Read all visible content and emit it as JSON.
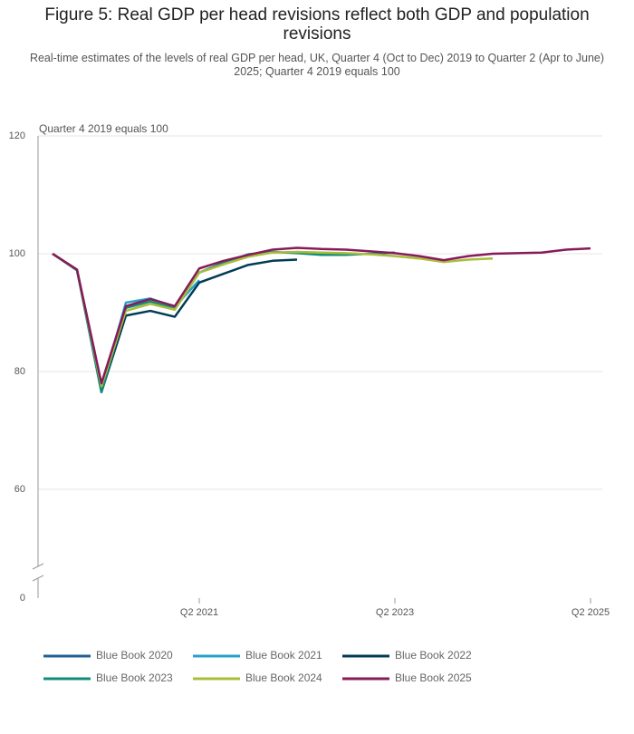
{
  "chart_data": {
    "type": "line",
    "title": "Figure 5: Real GDP per head revisions reflect both GDP and population revisions",
    "subtitle": "Real-time estimates of the levels of real GDP per head, UK, Quarter 4 (Oct to Dec) 2019 to Quarter 2 (Apr to June) 2025; Quarter 4 2019 equals 100",
    "y_label": "Quarter 4 2019 equals 100",
    "categories": [
      null,
      null,
      null,
      null,
      null,
      null,
      "Q2 2021",
      null,
      null,
      null,
      null,
      null,
      null,
      null,
      "Q2 2023",
      null,
      null,
      null,
      null,
      null,
      null,
      null,
      "Q2 2025"
    ],
    "ylim": [
      0,
      120
    ],
    "yticks": [
      0,
      60,
      80,
      100,
      120
    ],
    "axis_break": [
      0,
      50
    ],
    "grid": true,
    "series": [
      {
        "name": "Blue Book 2020",
        "color": "#206095",
        "values": [
          100,
          97.2,
          77.5,
          null,
          null,
          null,
          null,
          null,
          null,
          null,
          null,
          null,
          null,
          null,
          null,
          null,
          null,
          null,
          null,
          null,
          null,
          null,
          null
        ]
      },
      {
        "name": "Blue Book 2021",
        "color": "#27a0cc",
        "values": [
          100,
          97.3,
          77,
          91.7,
          92.4,
          91,
          95.5,
          null,
          null,
          null,
          null,
          null,
          null,
          null,
          null,
          null,
          null,
          null,
          null,
          null,
          null,
          null,
          null
        ]
      },
      {
        "name": "Blue Book 2022",
        "color": "#003c57",
        "values": [
          100,
          97.3,
          76.5,
          89.5,
          90.3,
          89.3,
          95.1,
          96.6,
          98.1,
          98.8,
          99,
          null,
          null,
          null,
          null,
          null,
          null,
          null,
          null,
          null,
          null,
          null,
          null
        ]
      },
      {
        "name": "Blue Book 2023",
        "color": "#118c7b",
        "values": [
          100,
          97.2,
          76.5,
          90.8,
          91.9,
          90.7,
          96.8,
          98.5,
          99.9,
          100.3,
          100.1,
          99.8,
          99.8,
          100,
          100.2,
          null,
          null,
          null,
          null,
          null,
          null,
          null,
          null
        ]
      },
      {
        "name": "Blue Book 2024",
        "color": "#a8bd3a",
        "values": [
          100,
          97.3,
          77.5,
          90.3,
          91.5,
          90.5,
          96.8,
          98.2,
          99.5,
          100.2,
          100.3,
          100.2,
          100.1,
          99.9,
          99.6,
          99.2,
          98.6,
          99,
          99.2,
          null,
          null,
          null,
          null
        ]
      },
      {
        "name": "Blue Book 2025",
        "color": "#871a5b",
        "values": [
          100,
          97.3,
          78,
          91.1,
          92.3,
          91.1,
          97.5,
          98.8,
          99.8,
          100.7,
          101,
          100.8,
          100.7,
          100.4,
          100.1,
          99.6,
          98.9,
          99.6,
          100,
          100.1,
          100.2,
          100.7,
          100.9
        ]
      }
    ]
  }
}
